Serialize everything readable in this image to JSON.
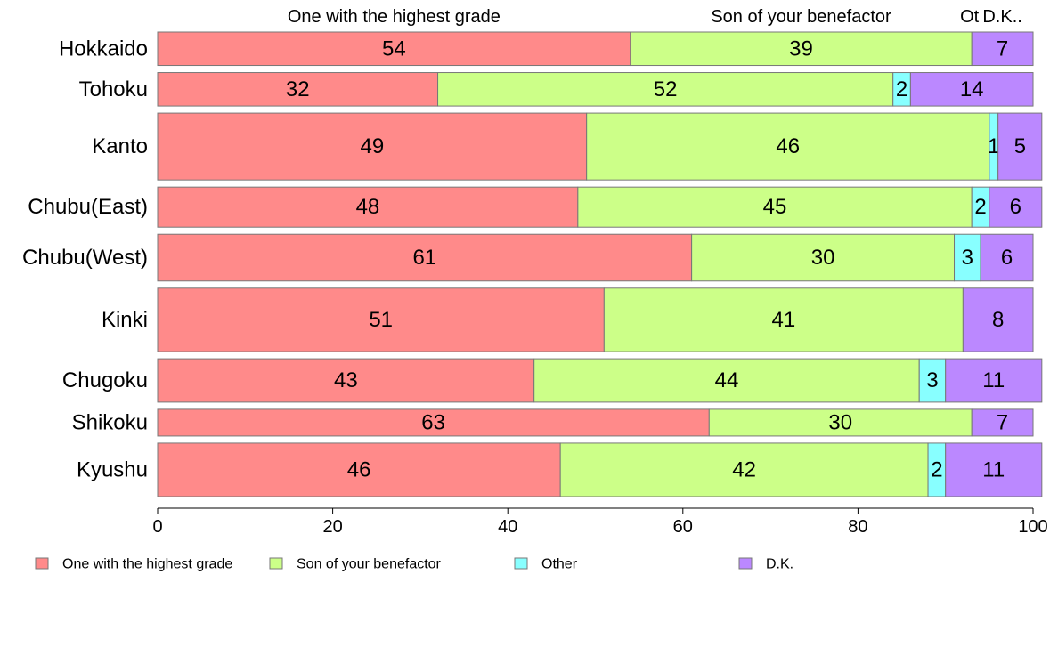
{
  "chart_data": {
    "type": "bar",
    "orientation": "horizontal",
    "stacked": true,
    "categories": [
      "Hokkaido",
      "Tohoku",
      "Kanto",
      "Chubu(East)",
      "Chubu(West)",
      "Kinki",
      "Chugoku",
      "Shikoku",
      "Kyushu"
    ],
    "series": [
      {
        "name": "One with the highest grade",
        "color": "#FF8A8A",
        "values": [
          54,
          32,
          49,
          48,
          61,
          51,
          43,
          63,
          46
        ]
      },
      {
        "name": "Son of your benefactor",
        "color": "#CCFF88",
        "values": [
          39,
          52,
          46,
          45,
          30,
          41,
          44,
          30,
          42
        ]
      },
      {
        "name": "Other",
        "color": "#88FFFF",
        "values": [
          0,
          2,
          1,
          2,
          3,
          0,
          3,
          0,
          2
        ]
      },
      {
        "name": "D.K.",
        "color": "#BB88FF",
        "values": [
          7,
          14,
          5,
          6,
          6,
          8,
          11,
          7,
          11
        ]
      }
    ],
    "bar_weights": [
      1,
      1,
      2,
      1.2,
      1.4,
      1.9,
      1.3,
      0.8,
      1.6
    ],
    "top_labels": [
      "One with the highest grade",
      "Son of your benefactor",
      "Ot",
      "D.K.."
    ],
    "xlim": [
      0,
      100
    ],
    "xticks": [
      0,
      20,
      40,
      60,
      80,
      100
    ],
    "legend_position": "bottom",
    "grid": false
  }
}
